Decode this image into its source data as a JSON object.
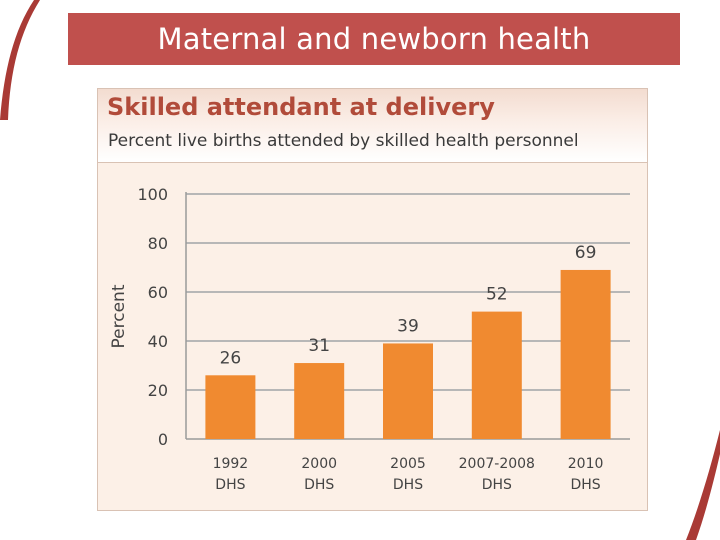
{
  "slide": {
    "title": "Maternal and newborn health"
  },
  "chart_data": {
    "type": "bar",
    "title": "Skilled attendant at delivery",
    "subtitle": "Percent live births attended by skilled health personnel",
    "ylabel": "Percent",
    "xlabel": "",
    "categories": [
      [
        "1992",
        "DHS"
      ],
      [
        "2000",
        "DHS"
      ],
      [
        "2005",
        "DHS"
      ],
      [
        "2007-2008",
        "DHS"
      ],
      [
        "2010",
        "DHS"
      ]
    ],
    "values": [
      26,
      31,
      39,
      52,
      69
    ],
    "ylim": [
      0,
      100
    ],
    "yticks": [
      0,
      20,
      40,
      60,
      80,
      100
    ],
    "grid": true,
    "bar_color": "#f08a30"
  },
  "colors": {
    "banner": "#c0504d",
    "title": "#b14b3a",
    "accent": "#a93a35"
  }
}
